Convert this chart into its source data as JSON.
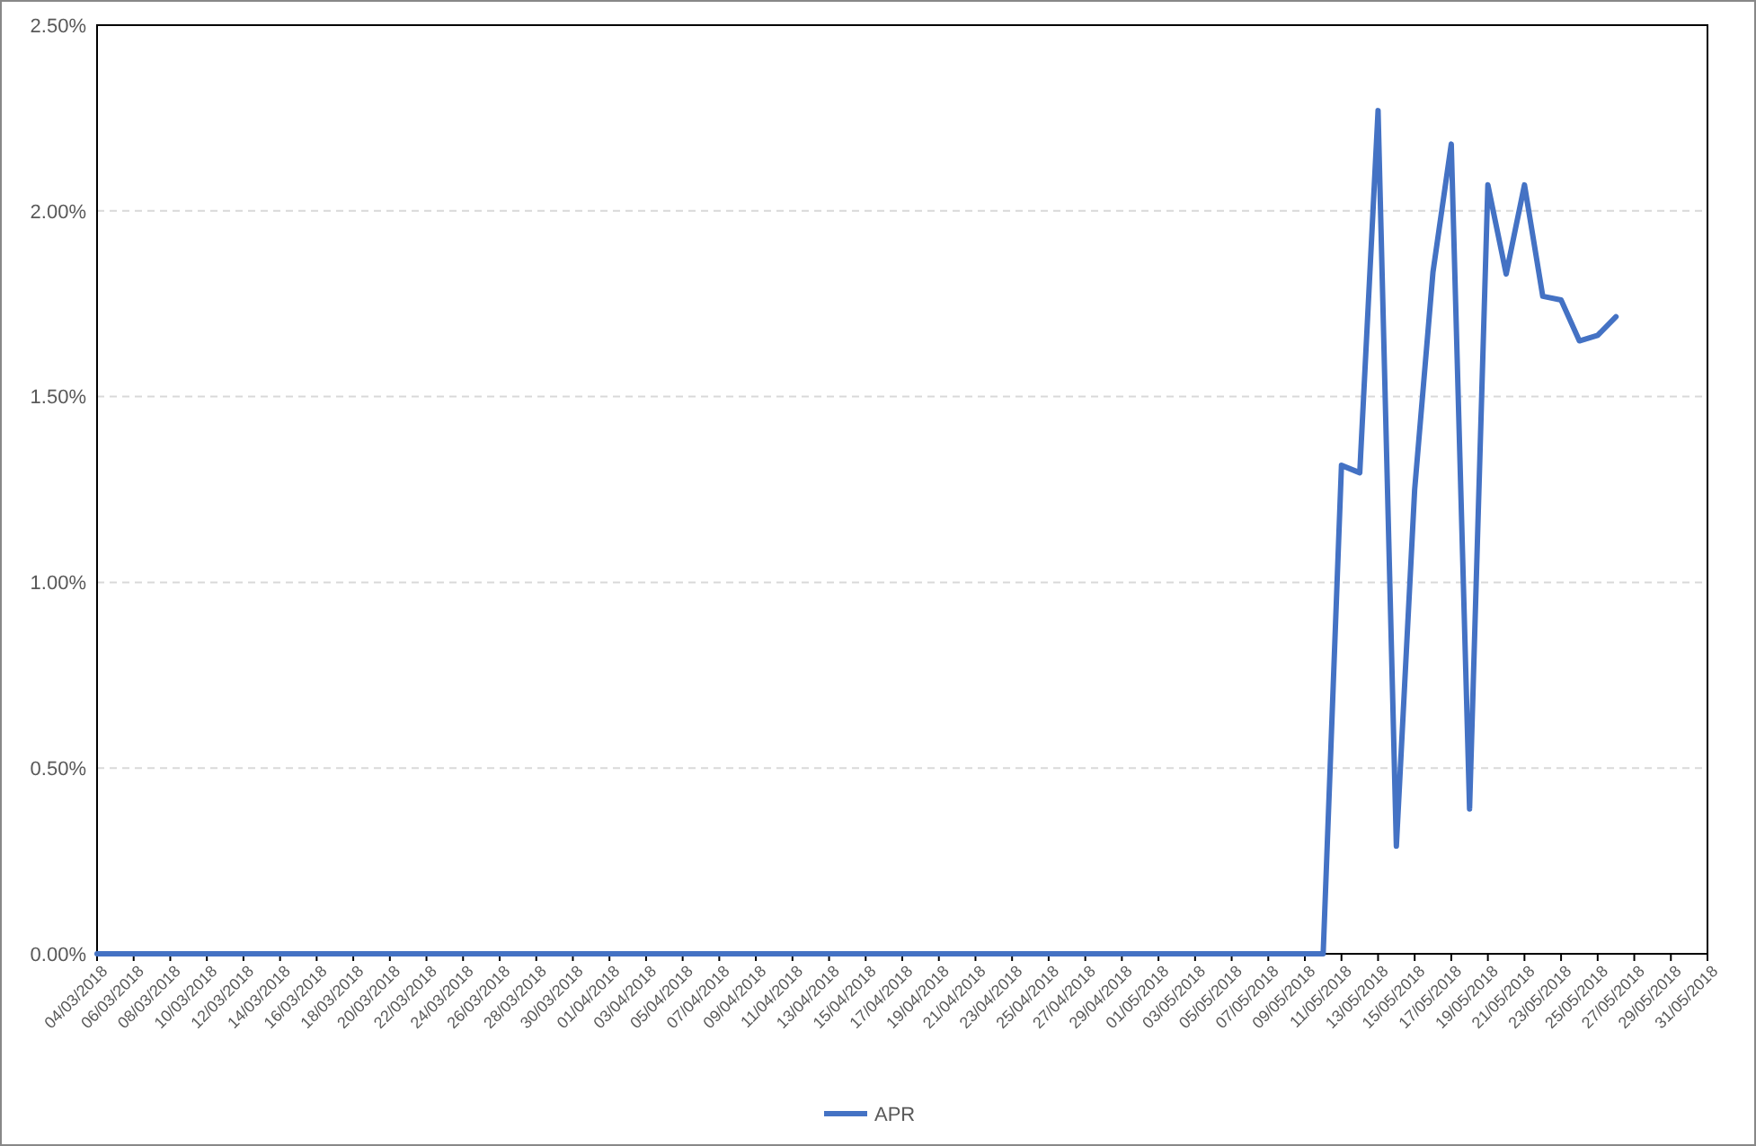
{
  "chart_data": {
    "type": "line",
    "x": [
      "2018-03-04",
      "2018-05-10",
      "2018-05-11",
      "2018-05-12",
      "2018-05-13",
      "2018-05-14",
      "2018-05-15",
      "2018-05-16",
      "2018-05-17",
      "2018-05-18",
      "2018-05-19",
      "2018-05-20",
      "2018-05-21",
      "2018-05-22",
      "2018-05-23",
      "2018-05-24",
      "2018-05-25",
      "2018-05-26"
    ],
    "series": [
      {
        "name": "APR",
        "color": "#4472c4",
        "values": [
          0,
          0,
          1.315,
          1.295,
          2.27,
          0.29,
          1.25,
          1.835,
          2.18,
          0.39,
          2.07,
          1.83,
          2.07,
          1.77,
          1.76,
          1.65,
          1.665,
          1.715
        ]
      }
    ],
    "xlim": [
      "2018-03-04",
      "2018-05-31"
    ],
    "xticks": [
      {
        "value": "2018-03-04",
        "label": "04/03/2018"
      },
      {
        "value": "2018-03-06",
        "label": "06/03/2018"
      },
      {
        "value": "2018-03-08",
        "label": "08/03/2018"
      },
      {
        "value": "2018-03-10",
        "label": "10/03/2018"
      },
      {
        "value": "2018-03-12",
        "label": "12/03/2018"
      },
      {
        "value": "2018-03-14",
        "label": "14/03/2018"
      },
      {
        "value": "2018-03-16",
        "label": "16/03/2018"
      },
      {
        "value": "2018-03-18",
        "label": "18/03/2018"
      },
      {
        "value": "2018-03-20",
        "label": "20/03/2018"
      },
      {
        "value": "2018-03-22",
        "label": "22/03/2018"
      },
      {
        "value": "2018-03-24",
        "label": "24/03/2018"
      },
      {
        "value": "2018-03-26",
        "label": "26/03/2018"
      },
      {
        "value": "2018-03-28",
        "label": "28/03/2018"
      },
      {
        "value": "2018-03-30",
        "label": "30/03/2018"
      },
      {
        "value": "2018-04-01",
        "label": "01/04/2018"
      },
      {
        "value": "2018-04-03",
        "label": "03/04/2018"
      },
      {
        "value": "2018-04-05",
        "label": "05/04/2018"
      },
      {
        "value": "2018-04-07",
        "label": "07/04/2018"
      },
      {
        "value": "2018-04-09",
        "label": "09/04/2018"
      },
      {
        "value": "2018-04-11",
        "label": "11/04/2018"
      },
      {
        "value": "2018-04-13",
        "label": "13/04/2018"
      },
      {
        "value": "2018-04-15",
        "label": "15/04/2018"
      },
      {
        "value": "2018-04-17",
        "label": "17/04/2018"
      },
      {
        "value": "2018-04-19",
        "label": "19/04/2018"
      },
      {
        "value": "2018-04-21",
        "label": "21/04/2018"
      },
      {
        "value": "2018-04-23",
        "label": "23/04/2018"
      },
      {
        "value": "2018-04-25",
        "label": "25/04/2018"
      },
      {
        "value": "2018-04-27",
        "label": "27/04/2018"
      },
      {
        "value": "2018-04-29",
        "label": "29/04/2018"
      },
      {
        "value": "2018-05-01",
        "label": "01/05/2018"
      },
      {
        "value": "2018-05-03",
        "label": "03/05/2018"
      },
      {
        "value": "2018-05-05",
        "label": "05/05/2018"
      },
      {
        "value": "2018-05-07",
        "label": "07/05/2018"
      },
      {
        "value": "2018-05-09",
        "label": "09/05/2018"
      },
      {
        "value": "2018-05-11",
        "label": "11/05/2018"
      },
      {
        "value": "2018-05-13",
        "label": "13/05/2018"
      },
      {
        "value": "2018-05-15",
        "label": "15/05/2018"
      },
      {
        "value": "2018-05-17",
        "label": "17/05/2018"
      },
      {
        "value": "2018-05-19",
        "label": "19/05/2018"
      },
      {
        "value": "2018-05-21",
        "label": "21/05/2018"
      },
      {
        "value": "2018-05-23",
        "label": "23/05/2018"
      },
      {
        "value": "2018-05-25",
        "label": "25/05/2018"
      },
      {
        "value": "2018-05-27",
        "label": "27/05/2018"
      },
      {
        "value": "2018-05-29",
        "label": "29/05/2018"
      },
      {
        "value": "2018-05-31",
        "label": "31/05/2018"
      }
    ],
    "ylim": [
      0,
      2.5
    ],
    "yticks": [
      {
        "value": 0,
        "label": "0.00%"
      },
      {
        "value": 0.5,
        "label": "0.50%"
      },
      {
        "value": 1,
        "label": "1.00%"
      },
      {
        "value": 1.5,
        "label": "1.50%"
      },
      {
        "value": 2,
        "label": "2.00%"
      },
      {
        "value": 2.5,
        "label": "2.50%"
      }
    ],
    "grid": "y",
    "legend": "bottom",
    "line_style": "solid"
  }
}
